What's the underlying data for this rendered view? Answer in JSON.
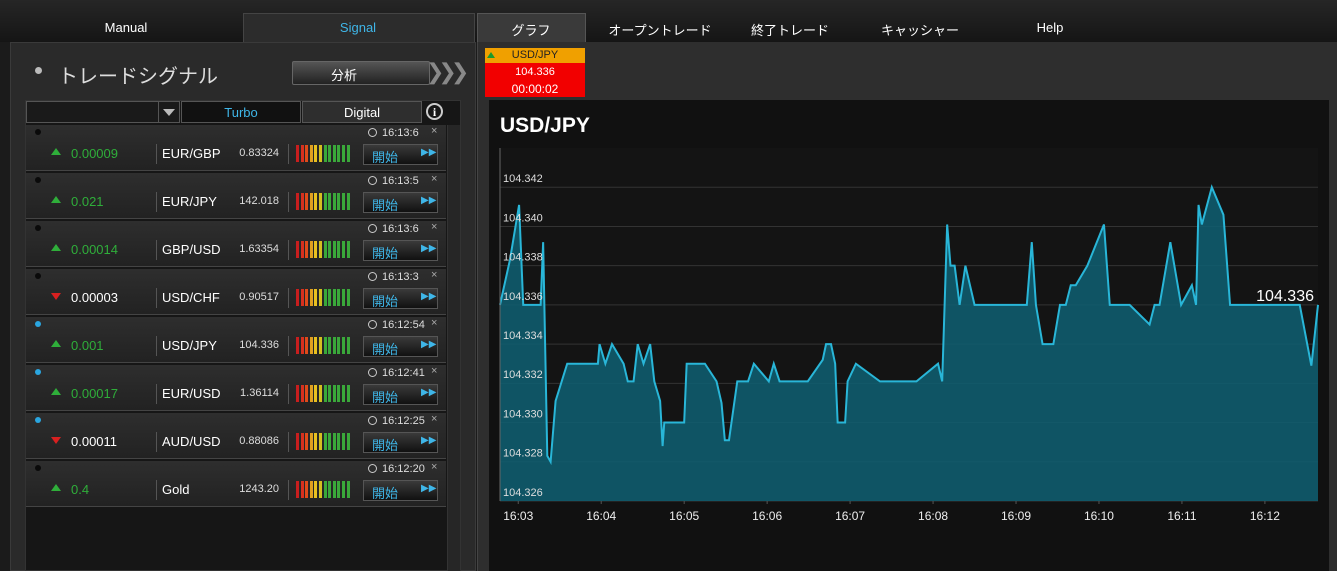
{
  "nav": {
    "tabs": [
      "Manual",
      "Signal",
      "グラフ",
      "オープントレード",
      "終了トレード",
      "キャッシャー",
      "Help"
    ]
  },
  "signals": {
    "title": "トレードシグナル",
    "analyze_button": "分析",
    "tabs": [
      "Turbo",
      "Digital"
    ],
    "rows": [
      {
        "active": false,
        "direction": "up",
        "change": "0.00009",
        "pair": "EUR/GBP",
        "price": "0.83324",
        "time": "16:13:6",
        "button": "開始"
      },
      {
        "active": false,
        "direction": "up",
        "change": "0.021",
        "pair": "EUR/JPY",
        "price": "142.018",
        "time": "16:13:5",
        "button": "開始"
      },
      {
        "active": false,
        "direction": "up",
        "change": "0.00014",
        "pair": "GBP/USD",
        "price": "1.63354",
        "time": "16:13:6",
        "button": "開始"
      },
      {
        "active": false,
        "direction": "down",
        "change": "0.00003",
        "pair": "USD/CHF",
        "price": "0.90517",
        "time": "16:13:3",
        "button": "開始"
      },
      {
        "active": true,
        "direction": "up",
        "change": "0.001",
        "pair": "USD/JPY",
        "price": "104.336",
        "time": "16:12:54",
        "button": "開始"
      },
      {
        "active": true,
        "direction": "up",
        "change": "0.00017",
        "pair": "EUR/USD",
        "price": "1.36114",
        "time": "16:12:41",
        "button": "開始"
      },
      {
        "active": true,
        "direction": "down",
        "change": "0.00011",
        "pair": "AUD/USD",
        "price": "0.88086",
        "time": "16:12:25",
        "button": "開始"
      },
      {
        "active": false,
        "direction": "up",
        "change": "0.4",
        "pair": "Gold",
        "price": "1243.20",
        "time": "16:12:20",
        "button": "開始"
      }
    ]
  },
  "ticker": {
    "pair": "USD/JPY",
    "price": "104.336",
    "timer": "00:00:02"
  },
  "chart_data": {
    "type": "area",
    "title": "USD/JPY",
    "color": "#29b6d8",
    "fill": "#0e5f72",
    "x": [
      962.78,
      962.9,
      963.01,
      963.06,
      963.27,
      963.3,
      963.35,
      963.39,
      963.45,
      963.59,
      963.96,
      963.98,
      964.05,
      964.13,
      964.27,
      964.32,
      964.39,
      964.44,
      964.51,
      964.59,
      964.64,
      964.71,
      964.74,
      964.76,
      965.0,
      965.03,
      965.25,
      965.39,
      965.45,
      965.49,
      965.54,
      965.64,
      965.77,
      965.84,
      966.02,
      966.08,
      966.15,
      966.49,
      966.67,
      966.71,
      966.77,
      966.82,
      966.85,
      966.94,
      966.97,
      967.07,
      967.36,
      967.8,
      968.06,
      968.11,
      968.17,
      968.21,
      968.26,
      968.32,
      968.39,
      968.5,
      969.13,
      969.19,
      969.24,
      969.32,
      969.45,
      969.53,
      969.6,
      969.66,
      969.72,
      969.86,
      970.06,
      970.13,
      970.37,
      970.61,
      970.67,
      970.73,
      970.86,
      970.99,
      971.12,
      971.17,
      971.2,
      971.24,
      971.36,
      971.5,
      971.58,
      972.42,
      972.56,
      972.64
    ],
    "values": [
      104.336,
      104.3383,
      104.3411,
      104.336,
      104.336,
      104.3392,
      104.3283,
      104.328,
      104.3311,
      104.333,
      104.333,
      104.334,
      104.333,
      104.334,
      104.333,
      104.3321,
      104.3321,
      104.334,
      104.333,
      104.334,
      104.3321,
      104.3311,
      104.3288,
      104.33,
      104.33,
      104.333,
      104.333,
      104.3321,
      104.331,
      104.3291,
      104.3291,
      104.3321,
      104.3321,
      104.333,
      104.3321,
      104.333,
      104.3321,
      104.3321,
      104.3332,
      104.334,
      104.334,
      104.333,
      104.33,
      104.33,
      104.3321,
      104.333,
      104.3321,
      104.3321,
      104.333,
      104.3321,
      104.3401,
      104.338,
      104.338,
      104.336,
      104.338,
      104.336,
      104.336,
      104.3392,
      104.336,
      104.334,
      104.334,
      104.336,
      104.336,
      104.337,
      104.337,
      104.338,
      104.3401,
      104.336,
      104.336,
      104.335,
      104.336,
      104.336,
      104.3392,
      104.336,
      104.337,
      104.336,
      104.3411,
      104.3401,
      104.342,
      104.3406,
      104.336,
      104.336,
      104.3329,
      104.336
    ],
    "last_value": 104.336,
    "xlim": [
      962.78,
      972.64
    ],
    "xticks": [
      {
        "value": 963,
        "label": "16:03"
      },
      {
        "value": 964,
        "label": "16:04"
      },
      {
        "value": 965,
        "label": "16:05"
      },
      {
        "value": 966,
        "label": "16:06"
      },
      {
        "value": 967,
        "label": "16:07"
      },
      {
        "value": 968,
        "label": "16:08"
      },
      {
        "value": 969,
        "label": "16:09"
      },
      {
        "value": 970,
        "label": "16:10"
      },
      {
        "value": 971,
        "label": "16:11"
      },
      {
        "value": 972,
        "label": "16:12"
      }
    ],
    "ylim": [
      104.326,
      104.344
    ],
    "yticks": [
      104.326,
      104.328,
      {
        "value": 104.33,
        "label": "104.330"
      },
      104.332,
      104.334,
      104.336,
      104.338,
      {
        "value": 104.34,
        "label": "104.340"
      },
      104.342
    ],
    "grid": true
  }
}
